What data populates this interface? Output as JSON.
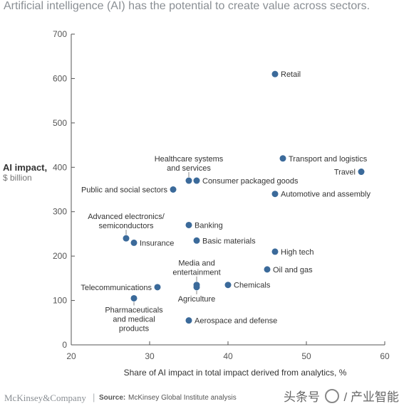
{
  "title": "Artificial intelligence (AI) has the potential to create value across sectors.",
  "chart_data": {
    "type": "scatter",
    "xlabel": "Share of AI impact in total impact derived from analytics, %",
    "ylabel_line1": "AI impact,",
    "ylabel_line2": "$ billion",
    "xlim": [
      20,
      60
    ],
    "ylim": [
      0,
      700
    ],
    "xticks": [
      20,
      30,
      40,
      50,
      60
    ],
    "yticks": [
      0,
      100,
      200,
      300,
      400,
      500,
      600,
      700
    ],
    "grid": false,
    "marker_color": "#3b6a9a",
    "points": [
      {
        "label": [
          "Retail"
        ],
        "x": 46,
        "y": 610,
        "anchor": "right"
      },
      {
        "label": [
          "Transport and logistics"
        ],
        "x": 47,
        "y": 420,
        "anchor": "right"
      },
      {
        "label": [
          "Travel"
        ],
        "x": 57,
        "y": 390,
        "anchor": "left"
      },
      {
        "label": [
          "Healthcare systems",
          "and services"
        ],
        "x": 35,
        "y": 370,
        "anchor": "above"
      },
      {
        "label": [
          "Consumer packaged goods"
        ],
        "x": 36,
        "y": 370,
        "anchor": "right"
      },
      {
        "label": [
          "Public and social sectors"
        ],
        "x": 33,
        "y": 350,
        "anchor": "left"
      },
      {
        "label": [
          "Automotive and assembly"
        ],
        "x": 46,
        "y": 340,
        "anchor": "right"
      },
      {
        "label": [
          "Banking"
        ],
        "x": 35,
        "y": 270,
        "anchor": "right"
      },
      {
        "label": [
          "Advanced electronics/",
          "semiconductors"
        ],
        "x": 27,
        "y": 240,
        "anchor": "above"
      },
      {
        "label": [
          "Insurance"
        ],
        "x": 28,
        "y": 230,
        "anchor": "right"
      },
      {
        "label": [
          "Basic materials"
        ],
        "x": 36,
        "y": 235,
        "anchor": "right"
      },
      {
        "label": [
          "High tech"
        ],
        "x": 46,
        "y": 210,
        "anchor": "right"
      },
      {
        "label": [
          "Oil and gas"
        ],
        "x": 45,
        "y": 170,
        "anchor": "right"
      },
      {
        "label": [
          "Media and",
          "entertainment"
        ],
        "x": 36,
        "y": 135,
        "anchor": "above"
      },
      {
        "label": [
          "Agriculture"
        ],
        "x": 36,
        "y": 130,
        "anchor": "below"
      },
      {
        "label": [
          "Chemicals"
        ],
        "x": 40,
        "y": 135,
        "anchor": "right"
      },
      {
        "label": [
          "Telecommunications"
        ],
        "x": 31,
        "y": 130,
        "anchor": "left"
      },
      {
        "label": [
          "Pharmaceuticals",
          "and medical",
          "products"
        ],
        "x": 28,
        "y": 105,
        "anchor": "below"
      },
      {
        "label": [
          "Aerospace and defense"
        ],
        "x": 35,
        "y": 55,
        "anchor": "right"
      }
    ]
  },
  "footer": {
    "brand": "McKinsey&Company",
    "separator": "|",
    "source_label": "Source:",
    "source_text": "McKinsey Global Institute analysis"
  },
  "watermark": {
    "left_text": "头条号",
    "separator": "/",
    "right_text": "产业智能官"
  }
}
